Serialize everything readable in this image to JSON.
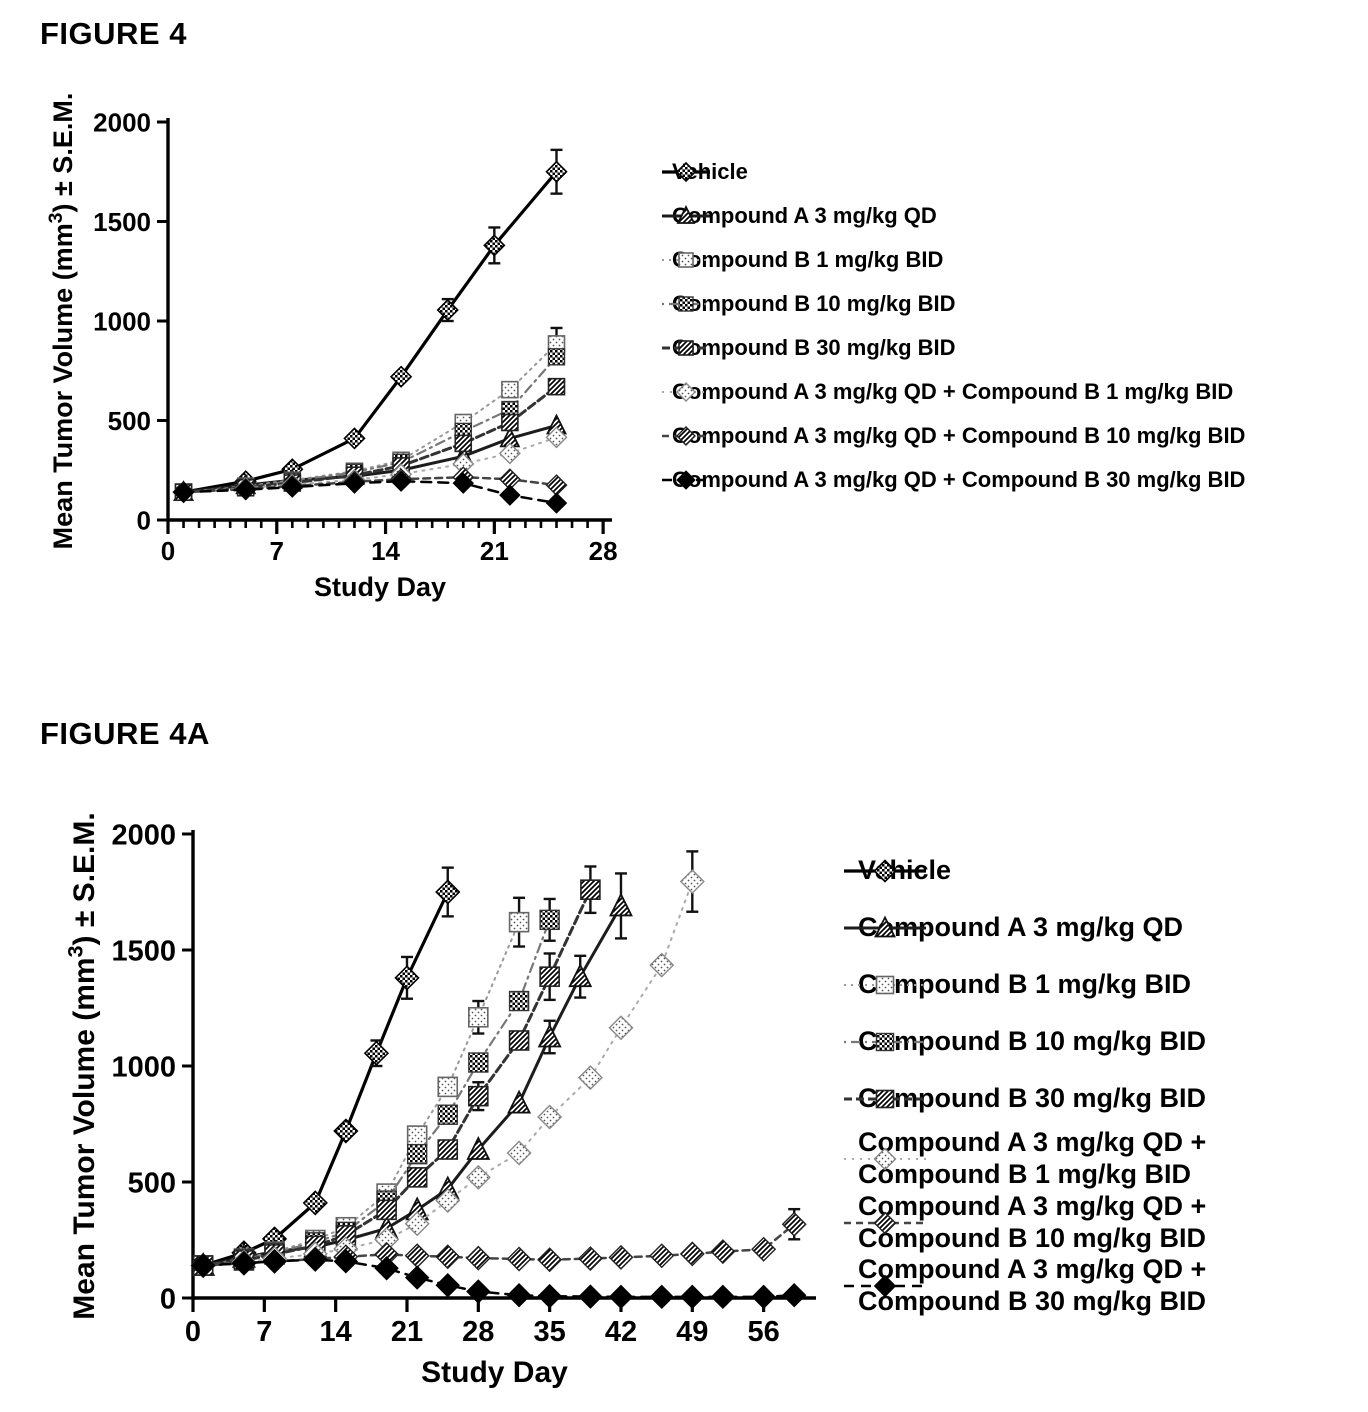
{
  "page": {
    "background": "#ffffff",
    "text_color": "#000000"
  },
  "chart_data": [
    {
      "id": "fig4",
      "type": "line",
      "title": "FIGURE 4",
      "xlabel": "Study Day",
      "ylabel": "Mean Tumor Volume (mm3) ± S.E.M.",
      "xlim": [
        0,
        28
      ],
      "ylim": [
        0,
        2000
      ],
      "xticks": [
        0,
        7,
        14,
        21,
        28
      ],
      "xminor_step": 1,
      "yticks": [
        0,
        500,
        1000,
        1500,
        2000
      ],
      "grid": false,
      "legend_position": "right",
      "series": [
        {
          "name": "Vehicle",
          "legend_lines": [
            "Vehicle"
          ],
          "marker": "diamond-checker",
          "color": "#000000",
          "width": 3.2,
          "dash": null,
          "x": [
            1,
            5,
            8,
            12,
            15,
            18,
            21,
            25
          ],
          "y": [
            140,
            195,
            255,
            410,
            720,
            1055,
            1380,
            1750
          ],
          "sem": [
            0,
            0,
            0,
            0,
            0,
            55,
            90,
            110
          ]
        },
        {
          "name": "Compound A 3 mg/kg QD",
          "legend_lines": [
            "Compound A 3 mg/kg QD"
          ],
          "marker": "triangle-hatch",
          "color": "#1c1c1c",
          "width": 3,
          "dash": null,
          "x": [
            1,
            5,
            8,
            12,
            15,
            19,
            22,
            25
          ],
          "y": [
            140,
            175,
            200,
            220,
            250,
            320,
            410,
            475
          ],
          "sem": [
            0,
            0,
            0,
            0,
            0,
            0,
            0,
            0
          ]
        },
        {
          "name": "Compound B 1 mg/kg BID",
          "legend_lines": [
            "Compound B 1 mg/kg BID"
          ],
          "marker": "square-dots-open",
          "color": "#999999",
          "width": 2,
          "dash": "2 5",
          "x": [
            1,
            5,
            8,
            12,
            15,
            19,
            22,
            25
          ],
          "y": [
            140,
            170,
            200,
            245,
            300,
            490,
            655,
            885
          ],
          "sem": [
            0,
            0,
            0,
            0,
            0,
            0,
            0,
            80
          ]
        },
        {
          "name": "Compound B 10 mg/kg BID",
          "legend_lines": [
            "Compound B 10 mg/kg BID"
          ],
          "marker": "square-checker",
          "color": "#777777",
          "width": 2.2,
          "dash": "2 5 9 5",
          "x": [
            1,
            5,
            8,
            12,
            15,
            19,
            22,
            25
          ],
          "y": [
            140,
            165,
            195,
            240,
            290,
            445,
            555,
            820
          ],
          "sem": [
            0,
            0,
            0,
            0,
            0,
            0,
            0,
            0
          ]
        },
        {
          "name": "Compound B 30 mg/kg BID",
          "legend_lines": [
            "Compound B 30 mg/kg BID"
          ],
          "marker": "square-hatch",
          "color": "#333333",
          "width": 3,
          "dash": "8 4",
          "x": [
            1,
            5,
            8,
            12,
            15,
            19,
            22,
            25
          ],
          "y": [
            140,
            162,
            186,
            225,
            272,
            385,
            490,
            670
          ],
          "sem": [
            0,
            0,
            0,
            0,
            0,
            0,
            0,
            0
          ]
        },
        {
          "name": "Compound A 3 mg/kg QD + Compound B 1 mg/kg BID",
          "legend_lines": [
            "Compound A 3 mg/kg QD + Compound B 1 mg/kg BID"
          ],
          "marker": "diamond-dots-open",
          "color": "#aaaaaa",
          "width": 2,
          "dash": "2 6",
          "x": [
            1,
            5,
            8,
            12,
            15,
            19,
            22,
            25
          ],
          "y": [
            140,
            160,
            178,
            202,
            230,
            282,
            335,
            415
          ],
          "sem": [
            0,
            0,
            0,
            0,
            0,
            0,
            0,
            0
          ]
        },
        {
          "name": "Compound A 3 mg/kg QD + Compound B 10 mg/kg BID",
          "legend_lines": [
            "Compound A 3 mg/kg QD + Compound B 10 mg/kg BID"
          ],
          "marker": "diamond-hatch",
          "color": "#444444",
          "width": 2.5,
          "dash": "7 5",
          "x": [
            1,
            5,
            8,
            12,
            15,
            19,
            22,
            25
          ],
          "y": [
            140,
            155,
            170,
            192,
            205,
            215,
            205,
            175
          ],
          "sem": [
            0,
            0,
            0,
            0,
            0,
            0,
            0,
            0
          ]
        },
        {
          "name": "Compound A 3 mg/kg QD + Compound B 30 mg/kg BID",
          "legend_lines": [
            "Compound A 3 mg/kg QD + Compound B 30 mg/kg BID"
          ],
          "marker": "diamond-filled",
          "color": "#000000",
          "width": 2.5,
          "dash": "10 7",
          "x": [
            1,
            5,
            8,
            12,
            15,
            19,
            22,
            25
          ],
          "y": [
            140,
            152,
            165,
            185,
            195,
            185,
            125,
            85
          ],
          "sem": [
            0,
            0,
            0,
            0,
            0,
            0,
            0,
            0
          ]
        }
      ]
    },
    {
      "id": "fig4a",
      "type": "line",
      "title": "FIGURE 4A",
      "xlabel": "Study Day",
      "ylabel": "Mean Tumor Volume (mm3) ± S.E.M.",
      "xlim": [
        0,
        61
      ],
      "ylim": [
        0,
        2000
      ],
      "xticks": [
        0,
        7,
        14,
        21,
        28,
        35,
        42,
        49,
        56
      ],
      "xminor_step": 0,
      "yticks": [
        0,
        500,
        1000,
        1500,
        2000
      ],
      "grid": false,
      "legend_position": "right",
      "series": [
        {
          "name": "Vehicle",
          "legend_lines": [
            "Vehicle"
          ],
          "marker": "diamond-checker",
          "color": "#000000",
          "width": 3.2,
          "dash": null,
          "x": [
            1,
            5,
            8,
            12,
            15,
            18,
            21,
            25
          ],
          "y": [
            140,
            195,
            255,
            410,
            720,
            1055,
            1380,
            1750
          ],
          "sem": [
            0,
            0,
            0,
            0,
            0,
            55,
            90,
            105
          ]
        },
        {
          "name": "Compound A 3 mg/kg QD",
          "legend_lines": [
            "Compound A 3 mg/kg QD"
          ],
          "marker": "triangle-hatch",
          "color": "#1c1c1c",
          "width": 3,
          "dash": null,
          "x": [
            1,
            5,
            8,
            12,
            15,
            19,
            22,
            25,
            28,
            32,
            35,
            38,
            42
          ],
          "y": [
            140,
            175,
            200,
            220,
            250,
            300,
            380,
            470,
            640,
            840,
            1125,
            1385,
            1690
          ],
          "sem": [
            0,
            0,
            0,
            0,
            0,
            0,
            0,
            0,
            0,
            0,
            70,
            90,
            140
          ]
        },
        {
          "name": "Compound B 1 mg/kg BID",
          "legend_lines": [
            "Compound B 1 mg/kg BID"
          ],
          "marker": "square-dots-open",
          "color": "#999999",
          "width": 2,
          "dash": "2 5",
          "x": [
            1,
            5,
            8,
            12,
            15,
            19,
            22,
            25,
            28,
            32
          ],
          "y": [
            140,
            170,
            200,
            250,
            305,
            450,
            700,
            910,
            1210,
            1620
          ],
          "sem": [
            0,
            0,
            0,
            0,
            0,
            0,
            0,
            0,
            70,
            105
          ]
        },
        {
          "name": "Compound B 10 mg/kg BID",
          "legend_lines": [
            "Compound B 10 mg/kg BID"
          ],
          "marker": "square-checker",
          "color": "#777777",
          "width": 2.2,
          "dash": "2 5 9 5",
          "x": [
            1,
            5,
            8,
            12,
            15,
            19,
            22,
            25,
            28,
            32,
            35
          ],
          "y": [
            140,
            168,
            195,
            240,
            285,
            420,
            620,
            790,
            1015,
            1280,
            1630
          ],
          "sem": [
            0,
            0,
            0,
            0,
            0,
            0,
            0,
            0,
            0,
            0,
            90
          ]
        },
        {
          "name": "Compound B 30 mg/kg BID",
          "legend_lines": [
            "Compound B 30 mg/kg BID"
          ],
          "marker": "square-hatch",
          "color": "#333333",
          "width": 3,
          "dash": "8 4",
          "x": [
            1,
            5,
            8,
            12,
            15,
            19,
            22,
            25,
            28,
            32,
            35,
            39
          ],
          "y": [
            140,
            162,
            188,
            225,
            270,
            380,
            520,
            640,
            870,
            1110,
            1385,
            1760
          ],
          "sem": [
            0,
            0,
            0,
            0,
            0,
            0,
            0,
            0,
            60,
            0,
            100,
            100
          ]
        },
        {
          "name": "Compound A 3 mg/kg QD + Compound B 1 mg/kg BID",
          "legend_lines": [
            "Compound A 3 mg/kg QD +",
            "Compound B 1 mg/kg BID"
          ],
          "marker": "diamond-dots-open",
          "color": "#aaaaaa",
          "width": 2,
          "dash": "2 6",
          "x": [
            1,
            5,
            8,
            12,
            15,
            19,
            22,
            25,
            28,
            32,
            35,
            39,
            42,
            46,
            49
          ],
          "y": [
            140,
            155,
            170,
            190,
            212,
            252,
            320,
            420,
            520,
            625,
            780,
            950,
            1165,
            1435,
            1795
          ],
          "sem": [
            0,
            0,
            0,
            0,
            0,
            0,
            0,
            0,
            0,
            0,
            0,
            0,
            0,
            0,
            130
          ]
        },
        {
          "name": "Compound A 3 mg/kg QD + Compound B 10 mg/kg BID",
          "legend_lines": [
            "Compound A 3 mg/kg QD +",
            "Compound B 10 mg/kg BID"
          ],
          "marker": "diamond-hatch",
          "color": "#444444",
          "width": 2.5,
          "dash": "7 5",
          "x": [
            1,
            5,
            8,
            12,
            15,
            19,
            22,
            25,
            28,
            32,
            35,
            39,
            42,
            46,
            49,
            52,
            56,
            59
          ],
          "y": [
            140,
            150,
            158,
            168,
            178,
            188,
            182,
            178,
            172,
            168,
            165,
            170,
            175,
            182,
            190,
            200,
            210,
            318
          ],
          "sem": [
            0,
            0,
            0,
            0,
            0,
            0,
            0,
            0,
            0,
            0,
            0,
            0,
            0,
            0,
            0,
            0,
            0,
            65
          ]
        },
        {
          "name": "Compound A 3 mg/kg QD + Compound B 30 mg/kg BID",
          "legend_lines": [
            "Compound A 3 mg/kg QD +",
            "Compound B 30 mg/kg BID"
          ],
          "marker": "diamond-filled",
          "color": "#000000",
          "width": 2.5,
          "dash": "10 7",
          "x": [
            1,
            5,
            8,
            12,
            15,
            19,
            22,
            25,
            28,
            32,
            35,
            39,
            42,
            46,
            49,
            52,
            56,
            59
          ],
          "y": [
            140,
            150,
            158,
            165,
            158,
            128,
            88,
            55,
            28,
            12,
            8,
            6,
            5,
            5,
            5,
            5,
            5,
            12
          ],
          "sem": [
            0,
            0,
            0,
            0,
            0,
            0,
            0,
            0,
            0,
            0,
            0,
            0,
            0,
            0,
            0,
            0,
            0,
            0
          ]
        }
      ]
    }
  ]
}
